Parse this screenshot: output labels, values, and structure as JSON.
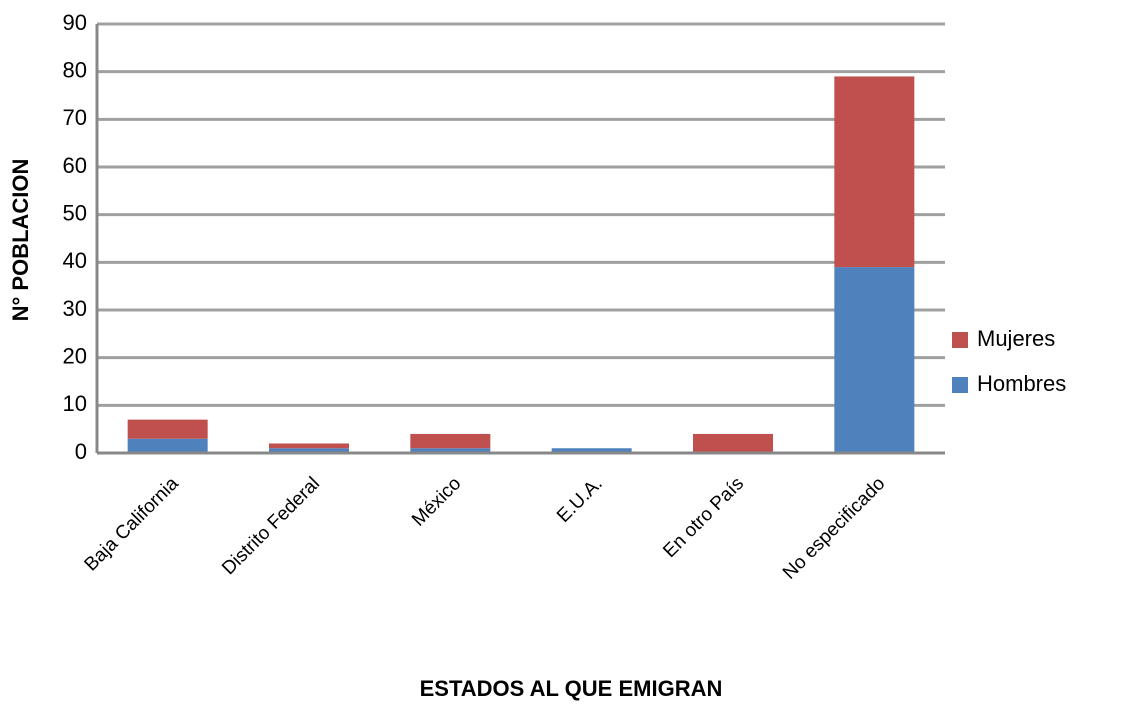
{
  "chart_data": {
    "type": "stacked_bar",
    "x_label": "ESTADOS AL QUE EMIGRAN",
    "y_label": "N° POBLACION",
    "categories": [
      "Baja California",
      "Distrito Federal",
      "México",
      "E.U.A.",
      "En otro País",
      "No especificado"
    ],
    "series": [
      {
        "name": "Hombres",
        "color": "#4f81bd",
        "values": [
          3,
          1,
          1,
          1,
          0,
          39
        ]
      },
      {
        "name": "Mujeres",
        "color": "#c0504d",
        "values": [
          4,
          1,
          3,
          0,
          4,
          40
        ]
      }
    ],
    "ylim": [
      0,
      90
    ],
    "yticks": [
      0,
      10,
      20,
      30,
      40,
      50,
      60,
      70,
      80,
      90
    ],
    "grid": true,
    "legend": "right"
  }
}
